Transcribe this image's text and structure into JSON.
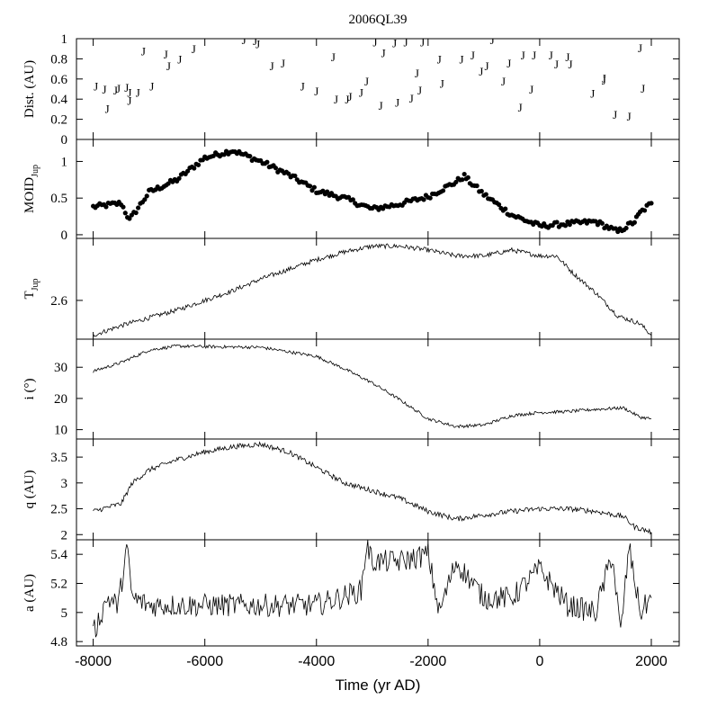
{
  "chart_data": {
    "type": "line",
    "title": "2006QL39",
    "xlabel": "Time (yr AD)",
    "xlim": [
      -8300,
      2500
    ],
    "x_ticks": [
      -8000,
      -6000,
      -4000,
      -2000,
      0,
      2000
    ],
    "x_tick_labels": [
      "-8000",
      "-6000",
      "-4000",
      "-2000",
      "0",
      "2000"
    ],
    "panels": [
      {
        "id": "dist",
        "type": "scatter",
        "ylabel": "Dist. (AU)",
        "ylim": [
          0,
          1
        ],
        "yticks": [
          0,
          0.2,
          0.4,
          0.6,
          0.8,
          1
        ],
        "ytick_labels": [
          "0",
          "0.2",
          "0.4",
          "0.6",
          "0.8",
          "1"
        ],
        "marker": "J",
        "points": [
          [
            -7950,
            0.53
          ],
          [
            -7800,
            0.5
          ],
          [
            -7750,
            0.31
          ],
          [
            -7600,
            0.49
          ],
          [
            -7550,
            0.51
          ],
          [
            -7400,
            0.52
          ],
          [
            -7350,
            0.47
          ],
          [
            -7350,
            0.39
          ],
          [
            -7200,
            0.47
          ],
          [
            -7100,
            0.88
          ],
          [
            -6950,
            0.53
          ],
          [
            -6700,
            0.85
          ],
          [
            -6650,
            0.73
          ],
          [
            -6450,
            0.8
          ],
          [
            -6200,
            0.9
          ],
          [
            -5300,
            0.99
          ],
          [
            -5100,
            0.98
          ],
          [
            -5050,
            0.95
          ],
          [
            -4800,
            0.73
          ],
          [
            -4600,
            0.76
          ],
          [
            -4250,
            0.53
          ],
          [
            -4000,
            0.48
          ],
          [
            -3700,
            0.82
          ],
          [
            -3650,
            0.4
          ],
          [
            -3450,
            0.4
          ],
          [
            -3400,
            0.43
          ],
          [
            -3200,
            0.47
          ],
          [
            -3100,
            0.58
          ],
          [
            -2950,
            0.97
          ],
          [
            -2850,
            0.34
          ],
          [
            -2800,
            0.86
          ],
          [
            -2600,
            0.96
          ],
          [
            -2550,
            0.37
          ],
          [
            -2400,
            0.97
          ],
          [
            -2300,
            0.41
          ],
          [
            -2200,
            0.66
          ],
          [
            -2150,
            0.49
          ],
          [
            -2100,
            0.97
          ],
          [
            -1800,
            0.8
          ],
          [
            -1750,
            0.56
          ],
          [
            -1400,
            0.8
          ],
          [
            -1200,
            0.84
          ],
          [
            -1050,
            0.68
          ],
          [
            -950,
            0.73
          ],
          [
            -850,
            0.99
          ],
          [
            -650,
            0.58
          ],
          [
            -550,
            0.76
          ],
          [
            -350,
            0.32
          ],
          [
            -300,
            0.84
          ],
          [
            -150,
            0.5
          ],
          [
            -100,
            0.84
          ],
          [
            200,
            0.84
          ],
          [
            300,
            0.75
          ],
          [
            500,
            0.82
          ],
          [
            550,
            0.75
          ],
          [
            950,
            0.46
          ],
          [
            1150,
            0.61
          ],
          [
            1150,
            0.59
          ],
          [
            1350,
            0.25
          ],
          [
            1600,
            0.23
          ],
          [
            1800,
            0.91
          ],
          [
            1850,
            0.51
          ]
        ]
      },
      {
        "id": "moid",
        "type": "scatter",
        "ylabel": "MOID",
        "ylabel_sub": "Jup",
        "ylim": [
          -0.05,
          1.3
        ],
        "yticks": [
          0,
          0.5,
          1
        ],
        "ytick_labels": [
          "0",
          "0.5",
          "1"
        ],
        "x": [
          -8000,
          -7500,
          -7350,
          -7000,
          -6500,
          -6000,
          -5500,
          -5000,
          -4500,
          -4000,
          -3500,
          -3000,
          -2500,
          -2000,
          -1500,
          -1350,
          -1250,
          -1000,
          -500,
          0,
          500,
          1000,
          1400,
          1700,
          1800,
          2000
        ],
        "y": [
          0.38,
          0.43,
          0.2,
          0.58,
          0.75,
          1.05,
          1.15,
          1.0,
          0.82,
          0.6,
          0.5,
          0.35,
          0.42,
          0.52,
          0.72,
          0.8,
          0.72,
          0.55,
          0.27,
          0.12,
          0.15,
          0.18,
          0.04,
          0.18,
          0.3,
          0.43
        ]
      },
      {
        "id": "tjup",
        "type": "line",
        "ylabel": "T",
        "ylabel_sub": "Jup",
        "ylim": [
          2.4,
          2.92
        ],
        "yticks": [
          2.6
        ],
        "ytick_labels": [
          "2.6"
        ],
        "x": [
          -8000,
          -7500,
          -7000,
          -6500,
          -6000,
          -5500,
          -5000,
          -4500,
          -4000,
          -3500,
          -3000,
          -2500,
          -2000,
          -1500,
          -1000,
          -500,
          0,
          300,
          600,
          1000,
          1400,
          1800,
          2000
        ],
        "y": [
          2.42,
          2.47,
          2.51,
          2.55,
          2.6,
          2.65,
          2.71,
          2.76,
          2.81,
          2.85,
          2.88,
          2.88,
          2.86,
          2.83,
          2.83,
          2.86,
          2.83,
          2.83,
          2.74,
          2.64,
          2.52,
          2.48,
          2.42
        ]
      },
      {
        "id": "incl",
        "type": "line",
        "ylabel": "i (°)",
        "ylim": [
          7,
          39
        ],
        "yticks": [
          10,
          20,
          30
        ],
        "ytick_labels": [
          "10",
          "20",
          "30"
        ],
        "x": [
          -8000,
          -7500,
          -7000,
          -6500,
          -6000,
          -5000,
          -4000,
          -3500,
          -3000,
          -2500,
          -2000,
          -1500,
          -1000,
          -500,
          0,
          500,
          1000,
          1500,
          1800,
          2000
        ],
        "y": [
          28.7,
          31.5,
          35.5,
          36.8,
          36.6,
          36.4,
          33.5,
          29.5,
          25.0,
          19.5,
          13.5,
          11.0,
          11.5,
          14.5,
          15.5,
          15.8,
          16.5,
          17.0,
          14.0,
          13.5
        ]
      },
      {
        "id": "q",
        "type": "line",
        "ylabel": "q (AU)",
        "ylim": [
          1.9,
          3.85
        ],
        "yticks": [
          2,
          2.5,
          3,
          3.5
        ],
        "ytick_labels": [
          "2",
          "2.5",
          "3",
          "3.5"
        ],
        "x": [
          -8000,
          -7500,
          -7300,
          -7000,
          -6500,
          -6000,
          -5500,
          -5000,
          -4500,
          -4000,
          -3500,
          -3000,
          -2500,
          -2000,
          -1500,
          -1000,
          -500,
          0,
          500,
          1000,
          1500,
          1700,
          2000
        ],
        "y": [
          2.45,
          2.6,
          3.0,
          3.25,
          3.45,
          3.6,
          3.7,
          3.75,
          3.6,
          3.3,
          3.0,
          2.85,
          2.7,
          2.45,
          2.3,
          2.38,
          2.45,
          2.5,
          2.5,
          2.45,
          2.35,
          2.15,
          2.05
        ]
      },
      {
        "id": "a",
        "type": "line",
        "ylabel": "a (AU)",
        "ylim": [
          4.77,
          5.5
        ],
        "yticks": [
          4.8,
          5,
          5.2,
          5.4
        ],
        "ytick_labels": [
          "4.8",
          "5",
          "5.2",
          "5.4"
        ],
        "x": [
          -8000,
          -7750,
          -7550,
          -7400,
          -7300,
          -7000,
          -6000,
          -5000,
          -4000,
          -3200,
          -3100,
          -3000,
          -2500,
          -2000,
          -1800,
          -1500,
          -1000,
          -500,
          0,
          500,
          1000,
          1300,
          1450,
          1600,
          1800,
          2000
        ],
        "y": [
          4.85,
          5.1,
          5.05,
          5.45,
          5.1,
          5.05,
          5.05,
          5.05,
          5.05,
          5.15,
          5.47,
          5.35,
          5.35,
          5.4,
          5.0,
          5.35,
          5.1,
          5.1,
          5.3,
          5.05,
          5.0,
          5.4,
          4.85,
          5.45,
          5.0,
          5.1
        ]
      }
    ]
  }
}
